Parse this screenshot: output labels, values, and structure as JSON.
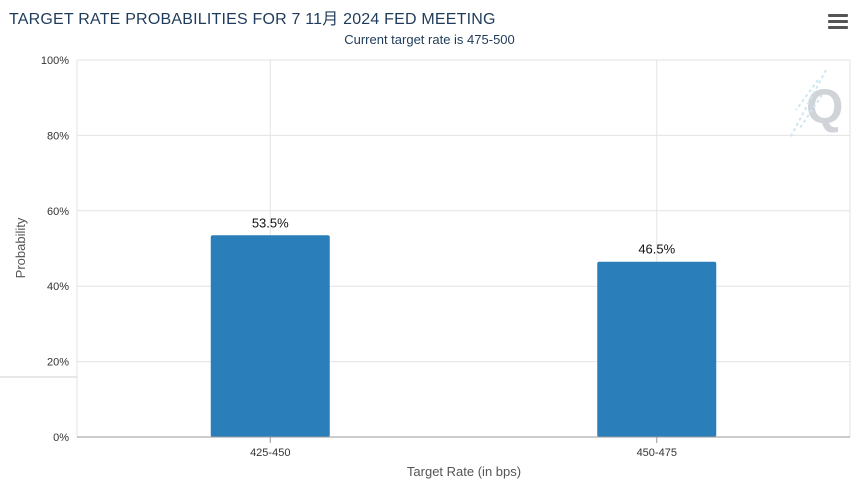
{
  "header": {
    "title": "TARGET RATE PROBABILITIES FOR 7 11月 2024 FED MEETING",
    "subtitle": "Current target rate is 475-500"
  },
  "menu": {
    "icon": "hamburger-menu-icon"
  },
  "watermark": {
    "icon": "q-logo-icon",
    "text": "Q"
  },
  "chart_data": {
    "type": "bar",
    "categories": [
      "425-450",
      "450-475"
    ],
    "values": [
      53.5,
      46.5
    ],
    "data_labels": [
      "53.5%",
      "46.5%"
    ],
    "xlabel": "Target Rate (in bps)",
    "ylabel": "Probability",
    "ylim": [
      0,
      100
    ],
    "yticks": [
      "0%",
      "20%",
      "40%",
      "60%",
      "80%",
      "100%"
    ],
    "grid": true,
    "bar_color": "#2a7fba"
  }
}
